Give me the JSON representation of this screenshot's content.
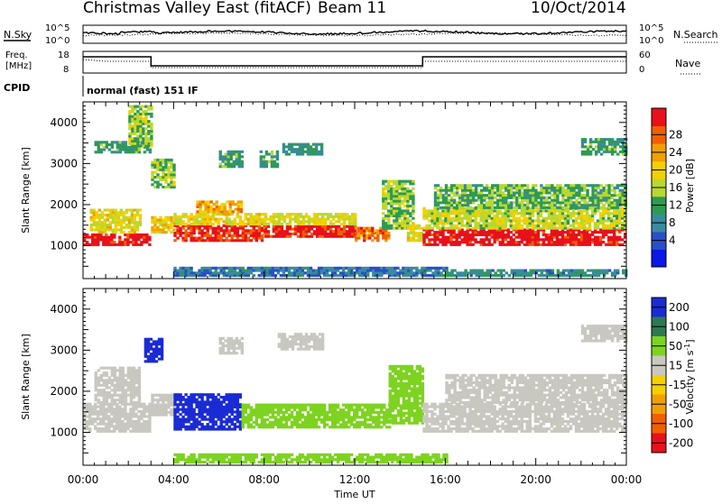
{
  "header": {
    "title": "Christmas Valley East (fitACF)",
    "beam": "Beam 11",
    "date": "10/Oct/2014"
  },
  "colors": {
    "dark_blue": "#1a2bd4",
    "blue_green": "#3a8aa0",
    "green": "#2d9a52",
    "light_green": "#7ed321",
    "yellow": "#f5d000",
    "orange": "#f0a000",
    "orange_red": "#f06000",
    "red": "#e8101a",
    "gray": "#c8c8c0"
  },
  "status_panel": {
    "nsky_label": "N.Sky",
    "nsearch_label": "N.Search",
    "noise_ticks": [
      "10^5",
      "10^0"
    ],
    "freq_label": "Freq.",
    "freq_unit": "[MHz]",
    "freq_ticks": [
      "18",
      "8"
    ],
    "nave_label": "Nave",
    "nave_ticks": [
      "60",
      "0"
    ],
    "cpid_label": "CPID",
    "cpid_text": "normal (fast) 151 IF"
  },
  "chart_data": [
    {
      "type": "heatmap",
      "name": "power",
      "ylabel": "Slant Range [km]",
      "xlabel": "Time UT",
      "ylim": [
        200,
        4500
      ],
      "y_ticks": [
        1000,
        2000,
        3000,
        4000
      ],
      "x_tick_labels": [
        "00:00",
        "04:00",
        "08:00",
        "12:00",
        "16:00",
        "20:00",
        "00:00"
      ],
      "x_ticks_hours": [
        0,
        4,
        8,
        12,
        16,
        20,
        24
      ],
      "colorbar": {
        "label": "Power [dB]",
        "ticks": [
          4,
          8,
          12,
          16,
          20,
          24,
          28
        ],
        "colors": [
          "#0a18e8",
          "#2a4fc8",
          "#3a8aa0",
          "#2d9a52",
          "#b8d830",
          "#f5d000",
          "#f0a000",
          "#f06000",
          "#e8101a"
        ]
      },
      "bands": [
        {
          "t0": 0.0,
          "t1": 3.0,
          "r0": 1000,
          "r1": 1300,
          "level": 30
        },
        {
          "t0": 0.3,
          "t1": 2.5,
          "r0": 1300,
          "r1": 1900,
          "level": 18
        },
        {
          "t0": 0.5,
          "t1": 3.0,
          "r0": 3250,
          "r1": 3500,
          "level": 10
        },
        {
          "t0": 2.0,
          "t1": 3.0,
          "r0": 3400,
          "r1": 4400,
          "level": 14
        },
        {
          "t0": 3.0,
          "t1": 4.0,
          "r0": 1300,
          "r1": 1700,
          "level": 20
        },
        {
          "t0": 3.0,
          "t1": 4.0,
          "r0": 2400,
          "r1": 3100,
          "level": 14
        },
        {
          "t0": 4.0,
          "t1": 8.0,
          "r0": 1100,
          "r1": 1500,
          "level": 28
        },
        {
          "t0": 4.0,
          "t1": 8.0,
          "r0": 1500,
          "r1": 1800,
          "level": 18
        },
        {
          "t0": 5.0,
          "t1": 7.0,
          "r0": 1800,
          "r1": 2100,
          "level": 22
        },
        {
          "t0": 6.0,
          "t1": 7.0,
          "r0": 2900,
          "r1": 3300,
          "level": 10
        },
        {
          "t0": 7.8,
          "t1": 8.6,
          "r0": 2900,
          "r1": 3300,
          "level": 10
        },
        {
          "t0": 8.0,
          "t1": 12.0,
          "r0": 1200,
          "r1": 1500,
          "level": 29
        },
        {
          "t0": 8.0,
          "t1": 12.0,
          "r0": 1500,
          "r1": 1800,
          "level": 17
        },
        {
          "t0": 8.8,
          "t1": 10.5,
          "r0": 3200,
          "r1": 3500,
          "level": 9
        },
        {
          "t0": 12.0,
          "t1": 13.5,
          "r0": 1100,
          "r1": 1450,
          "level": 24
        },
        {
          "t0": 13.2,
          "t1": 14.6,
          "r0": 1400,
          "r1": 2600,
          "level": 14
        },
        {
          "t0": 14.3,
          "t1": 15.0,
          "r0": 1100,
          "r1": 1500,
          "level": 18
        },
        {
          "t0": 15.0,
          "t1": 24.0,
          "r0": 1000,
          "r1": 1400,
          "level": 30
        },
        {
          "t0": 15.0,
          "t1": 24.0,
          "r0": 1400,
          "r1": 1900,
          "level": 16
        },
        {
          "t0": 15.5,
          "t1": 24.0,
          "r0": 1900,
          "r1": 2500,
          "level": 12
        },
        {
          "t0": 22.0,
          "t1": 24.0,
          "r0": 3200,
          "r1": 3600,
          "level": 10
        },
        {
          "t0": 4.0,
          "t1": 16.0,
          "r0": 250,
          "r1": 450,
          "level": 6
        },
        {
          "t0": 16.0,
          "t1": 24.0,
          "r0": 250,
          "r1": 400,
          "level": 8
        }
      ]
    },
    {
      "type": "heatmap",
      "name": "velocity",
      "ylabel": "Slant Range [km]",
      "xlabel": "Time UT",
      "ylim": [
        200,
        4500
      ],
      "y_ticks": [
        1000,
        2000,
        3000,
        4000
      ],
      "x_tick_labels": [
        "00:00",
        "04:00",
        "08:00",
        "12:00",
        "16:00",
        "20:00",
        "00:00"
      ],
      "x_ticks_hours": [
        0,
        4,
        8,
        12,
        16,
        20,
        24
      ],
      "colorbar": {
        "label": "Velocity [m s^-1]",
        "ticks": [
          "200",
          "100",
          "50",
          "15",
          "-15",
          "-50",
          "-100",
          "-200"
        ],
        "colors": [
          "#1a2bd4",
          "#2d7a52",
          "#7ed321",
          "#c8c8c0",
          "#f5d000",
          "#f0a000",
          "#f06000",
          "#e8101a"
        ]
      },
      "bands": [
        {
          "t0": 0.0,
          "t1": 3.0,
          "r0": 1000,
          "r1": 1700,
          "level": 0
        },
        {
          "t0": 0.5,
          "t1": 2.5,
          "r0": 1700,
          "r1": 2600,
          "level": 0
        },
        {
          "t0": 2.7,
          "t1": 3.5,
          "r0": 2700,
          "r1": 3300,
          "level": 220
        },
        {
          "t0": 3.0,
          "t1": 4.0,
          "r0": 1400,
          "r1": 1900,
          "level": 0
        },
        {
          "t0": 4.0,
          "t1": 7.0,
          "r0": 1050,
          "r1": 1900,
          "level": 220
        },
        {
          "t0": 7.0,
          "t1": 13.5,
          "r0": 1100,
          "r1": 1700,
          "level": 60
        },
        {
          "t0": 13.5,
          "t1": 15.0,
          "r0": 1200,
          "r1": 2600,
          "level": 60
        },
        {
          "t0": 6.0,
          "t1": 7.0,
          "r0": 2900,
          "r1": 3300,
          "level": 0
        },
        {
          "t0": 8.6,
          "t1": 10.6,
          "r0": 3000,
          "r1": 3400,
          "level": 0
        },
        {
          "t0": 15.0,
          "t1": 24.0,
          "r0": 1000,
          "r1": 1700,
          "level": 0
        },
        {
          "t0": 16.0,
          "t1": 24.0,
          "r0": 1700,
          "r1": 2400,
          "level": 0
        },
        {
          "t0": 22.0,
          "t1": 24.0,
          "r0": 3200,
          "r1": 3600,
          "level": 0
        },
        {
          "t0": 4.0,
          "t1": 16.0,
          "r0": 250,
          "r1": 450,
          "level": 60
        }
      ]
    }
  ]
}
